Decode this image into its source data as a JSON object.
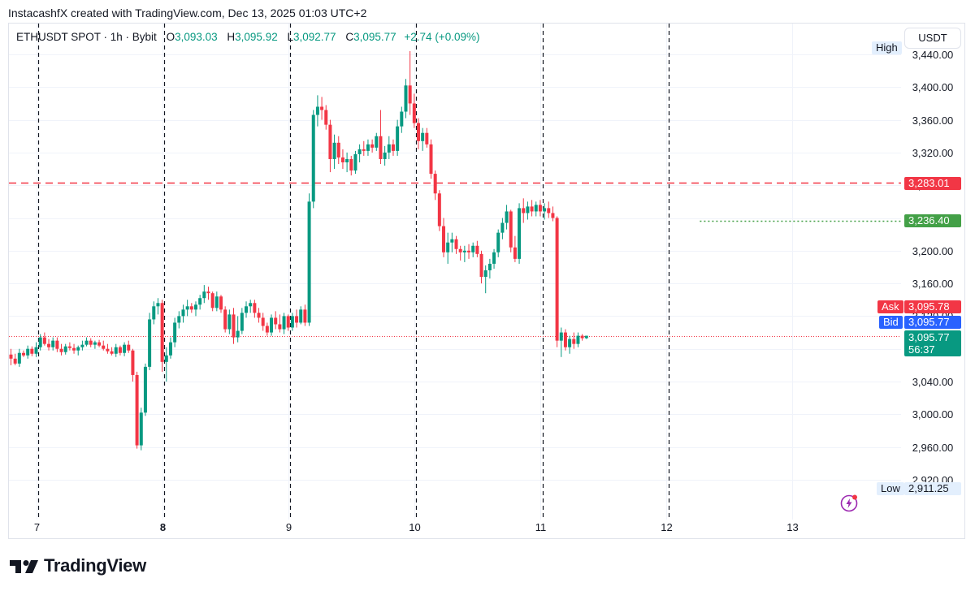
{
  "header": {
    "created_by": "InstacashfX created with TradingView.com, Dec 13, 2025 01:03 UTC+2"
  },
  "legend": {
    "symbol": "ETHUSDT SPOT · 1h · Bybit",
    "o_label": "O",
    "o_value": "3,093.03",
    "h_label": "H",
    "h_value": "3,095.92",
    "l_label": "L",
    "l_value": "3,092.77",
    "c_label": "C",
    "c_value": "3,095.77",
    "change": "+2.74 (+0.09%)"
  },
  "currency_button": "USDT",
  "price_tags": {
    "high_label": "High",
    "low_label": "Low",
    "low_value": "2,911.25",
    "red_line_value": "3,283.01",
    "green_line_value": "3,236.40",
    "ask_label": "Ask",
    "ask_value": "3,095.78",
    "bid_label": "Bid",
    "bid_value": "3,095.77",
    "last_value": "3,095.77",
    "countdown": "56:37"
  },
  "brand": {
    "name": "TradingView"
  },
  "icons": {
    "logo": "tradingview-logo-icon",
    "flash": "flash-alert-icon"
  },
  "colors": {
    "up": "#089981",
    "down": "#f23645",
    "blue": "#2962ff",
    "green_line": "#43a047",
    "grid": "#f0f3fa",
    "text": "#131722"
  },
  "chart_data": {
    "type": "candlestick",
    "symbol": "ETHUSDT",
    "interval": "1h",
    "exchange": "Bybit",
    "y_ticks": [
      2920,
      2960,
      3000,
      3040,
      3080,
      3120,
      3160,
      3200,
      3240,
      3280,
      3320,
      3360,
      3400,
      3440
    ],
    "y_tick_labels": [
      "2,920.00",
      "2,960.00",
      "3,000.00",
      "3,040.00",
      "3,080.00",
      "3,120.00",
      "3,160.00",
      "3,200.00",
      "3,240.00",
      "3,280.00",
      "3,320.00",
      "3,360.00",
      "3,400.00",
      "3,440.00"
    ],
    "x_ticks": [
      {
        "label": "7",
        "bold": false,
        "bar": 6
      },
      {
        "label": "8",
        "bold": true,
        "bar": 36
      },
      {
        "label": "9",
        "bold": false,
        "bar": 66
      },
      {
        "label": "10",
        "bold": false,
        "bar": 96
      },
      {
        "label": "11",
        "bold": false,
        "bar": 126
      },
      {
        "label": "12",
        "bold": false,
        "bar": 156
      },
      {
        "label": "13",
        "bold": false,
        "bar": 186
      }
    ],
    "session_separators_bar": [
      7,
      37,
      67,
      97,
      127,
      157
    ],
    "horizontal_lines": [
      {
        "price": 3283.01,
        "style": "dashed",
        "color": "#f23645"
      },
      {
        "price": 3236.4,
        "style": "dotted",
        "color": "#43a047",
        "from_bar": 164
      }
    ],
    "last_price_line": 3095.77,
    "ohlc": [
      [
        3073,
        3080,
        3060,
        3068
      ],
      [
        3068,
        3074,
        3060,
        3062
      ],
      [
        3062,
        3080,
        3058,
        3075
      ],
      [
        3075,
        3078,
        3070,
        3072
      ],
      [
        3072,
        3084,
        3068,
        3080
      ],
      [
        3080,
        3083,
        3071,
        3074
      ],
      [
        3074,
        3088,
        3070,
        3082
      ],
      [
        3082,
        3098,
        3078,
        3094
      ],
      [
        3094,
        3100,
        3084,
        3086
      ],
      [
        3086,
        3092,
        3078,
        3082
      ],
      [
        3082,
        3094,
        3078,
        3090
      ],
      [
        3090,
        3094,
        3076,
        3080
      ],
      [
        3080,
        3086,
        3072,
        3076
      ],
      [
        3076,
        3086,
        3073,
        3083
      ],
      [
        3083,
        3088,
        3078,
        3081
      ],
      [
        3081,
        3086,
        3074,
        3078
      ],
      [
        3078,
        3084,
        3072,
        3082
      ],
      [
        3082,
        3090,
        3078,
        3085
      ],
      [
        3085,
        3094,
        3083,
        3090
      ],
      [
        3090,
        3093,
        3082,
        3085
      ],
      [
        3085,
        3090,
        3080,
        3088
      ],
      [
        3088,
        3091,
        3082,
        3084
      ],
      [
        3084,
        3090,
        3078,
        3080
      ],
      [
        3080,
        3086,
        3074,
        3077
      ],
      [
        3077,
        3082,
        3072,
        3074
      ],
      [
        3074,
        3086,
        3070,
        3082
      ],
      [
        3082,
        3084,
        3072,
        3075
      ],
      [
        3075,
        3088,
        3071,
        3085
      ],
      [
        3085,
        3090,
        3075,
        3078
      ],
      [
        3078,
        3080,
        3040,
        3048
      ],
      [
        3048,
        3052,
        2958,
        2962
      ],
      [
        2962,
        3008,
        2956,
        3002
      ],
      [
        3002,
        3062,
        2998,
        3058
      ],
      [
        3058,
        3124,
        3054,
        3116
      ],
      [
        3116,
        3138,
        3110,
        3132
      ],
      [
        3132,
        3142,
        3122,
        3136
      ],
      [
        3136,
        3140,
        3052,
        3064
      ],
      [
        3064,
        3082,
        3040,
        3072
      ],
      [
        3072,
        3094,
        3068,
        3088
      ],
      [
        3088,
        3118,
        3082,
        3112
      ],
      [
        3112,
        3126,
        3105,
        3120
      ],
      [
        3120,
        3134,
        3112,
        3128
      ],
      [
        3128,
        3140,
        3120,
        3132
      ],
      [
        3132,
        3136,
        3124,
        3128
      ],
      [
        3128,
        3138,
        3120,
        3134
      ],
      [
        3134,
        3146,
        3128,
        3142
      ],
      [
        3142,
        3158,
        3136,
        3150
      ],
      [
        3150,
        3156,
        3140,
        3148
      ],
      [
        3148,
        3150,
        3126,
        3130
      ],
      [
        3130,
        3150,
        3126,
        3144
      ],
      [
        3144,
        3146,
        3124,
        3128
      ],
      [
        3128,
        3132,
        3100,
        3104
      ],
      [
        3104,
        3128,
        3098,
        3122
      ],
      [
        3122,
        3130,
        3086,
        3094
      ],
      [
        3094,
        3120,
        3088,
        3102
      ],
      [
        3102,
        3130,
        3098,
        3124
      ],
      [
        3124,
        3138,
        3118,
        3132
      ],
      [
        3132,
        3140,
        3124,
        3136
      ],
      [
        3136,
        3140,
        3118,
        3124
      ],
      [
        3124,
        3130,
        3112,
        3118
      ],
      [
        3118,
        3124,
        3102,
        3108
      ],
      [
        3108,
        3112,
        3096,
        3100
      ],
      [
        3100,
        3122,
        3096,
        3118
      ],
      [
        3118,
        3126,
        3104,
        3110
      ],
      [
        3110,
        3122,
        3100,
        3104
      ],
      [
        3104,
        3124,
        3098,
        3120
      ],
      [
        3120,
        3122,
        3102,
        3106
      ],
      [
        3106,
        3124,
        3102,
        3120
      ],
      [
        3120,
        3128,
        3106,
        3112
      ],
      [
        3112,
        3132,
        3110,
        3128
      ],
      [
        3128,
        3134,
        3108,
        3112
      ],
      [
        3112,
        3270,
        3108,
        3260
      ],
      [
        3260,
        3372,
        3252,
        3366
      ],
      [
        3366,
        3390,
        3352,
        3376
      ],
      [
        3376,
        3388,
        3360,
        3372
      ],
      [
        3372,
        3378,
        3348,
        3354
      ],
      [
        3354,
        3360,
        3296,
        3312
      ],
      [
        3312,
        3342,
        3300,
        3332
      ],
      [
        3332,
        3340,
        3306,
        3314
      ],
      [
        3314,
        3324,
        3300,
        3308
      ],
      [
        3308,
        3320,
        3296,
        3312
      ],
      [
        3312,
        3316,
        3292,
        3298
      ],
      [
        3298,
        3322,
        3294,
        3318
      ],
      [
        3318,
        3330,
        3308,
        3324
      ],
      [
        3324,
        3334,
        3316,
        3322
      ],
      [
        3322,
        3336,
        3316,
        3330
      ],
      [
        3330,
        3336,
        3320,
        3326
      ],
      [
        3326,
        3344,
        3322,
        3340
      ],
      [
        3340,
        3372,
        3306,
        3312
      ],
      [
        3312,
        3328,
        3304,
        3320
      ],
      [
        3320,
        3340,
        3312,
        3330
      ],
      [
        3330,
        3336,
        3316,
        3322
      ],
      [
        3322,
        3360,
        3316,
        3352
      ],
      [
        3352,
        3376,
        3344,
        3370
      ],
      [
        3370,
        3410,
        3362,
        3402
      ],
      [
        3402,
        3444,
        3366,
        3380
      ],
      [
        3380,
        3392,
        3350,
        3356
      ],
      [
        3356,
        3362,
        3324,
        3334
      ],
      [
        3334,
        3350,
        3322,
        3344
      ],
      [
        3344,
        3350,
        3326,
        3330
      ],
      [
        3330,
        3336,
        3288,
        3294
      ],
      [
        3294,
        3298,
        3262,
        3270
      ],
      [
        3270,
        3274,
        3224,
        3230
      ],
      [
        3230,
        3240,
        3192,
        3198
      ],
      [
        3198,
        3222,
        3184,
        3210
      ],
      [
        3210,
        3222,
        3198,
        3214
      ],
      [
        3214,
        3218,
        3196,
        3202
      ],
      [
        3202,
        3206,
        3188,
        3198
      ],
      [
        3198,
        3206,
        3186,
        3200
      ],
      [
        3200,
        3208,
        3190,
        3198
      ],
      [
        3198,
        3210,
        3192,
        3206
      ],
      [
        3206,
        3212,
        3192,
        3196
      ],
      [
        3196,
        3200,
        3160,
        3168
      ],
      [
        3168,
        3182,
        3148,
        3176
      ],
      [
        3176,
        3190,
        3166,
        3184
      ],
      [
        3184,
        3202,
        3178,
        3198
      ],
      [
        3198,
        3226,
        3192,
        3222
      ],
      [
        3222,
        3240,
        3214,
        3234
      ],
      [
        3234,
        3256,
        3226,
        3248
      ],
      [
        3248,
        3250,
        3198,
        3204
      ],
      [
        3204,
        3218,
        3186,
        3190
      ],
      [
        3190,
        3258,
        3184,
        3252
      ],
      [
        3252,
        3264,
        3234,
        3246
      ],
      [
        3246,
        3260,
        3238,
        3254
      ],
      [
        3254,
        3262,
        3242,
        3248
      ],
      [
        3248,
        3260,
        3242,
        3256
      ],
      [
        3256,
        3262,
        3242,
        3248
      ],
      [
        3248,
        3258,
        3238,
        3252
      ],
      [
        3252,
        3260,
        3240,
        3246
      ],
      [
        3246,
        3254,
        3236,
        3240
      ],
      [
        3240,
        3242,
        3082,
        3090
      ],
      [
        3090,
        3106,
        3070,
        3100
      ],
      [
        3100,
        3104,
        3078,
        3082
      ],
      [
        3082,
        3096,
        3074,
        3092
      ],
      [
        3092,
        3100,
        3080,
        3086
      ],
      [
        3086,
        3100,
        3082,
        3096
      ],
      [
        3096,
        3098,
        3090,
        3093
      ],
      [
        3093,
        3096,
        3092,
        3096
      ]
    ]
  }
}
